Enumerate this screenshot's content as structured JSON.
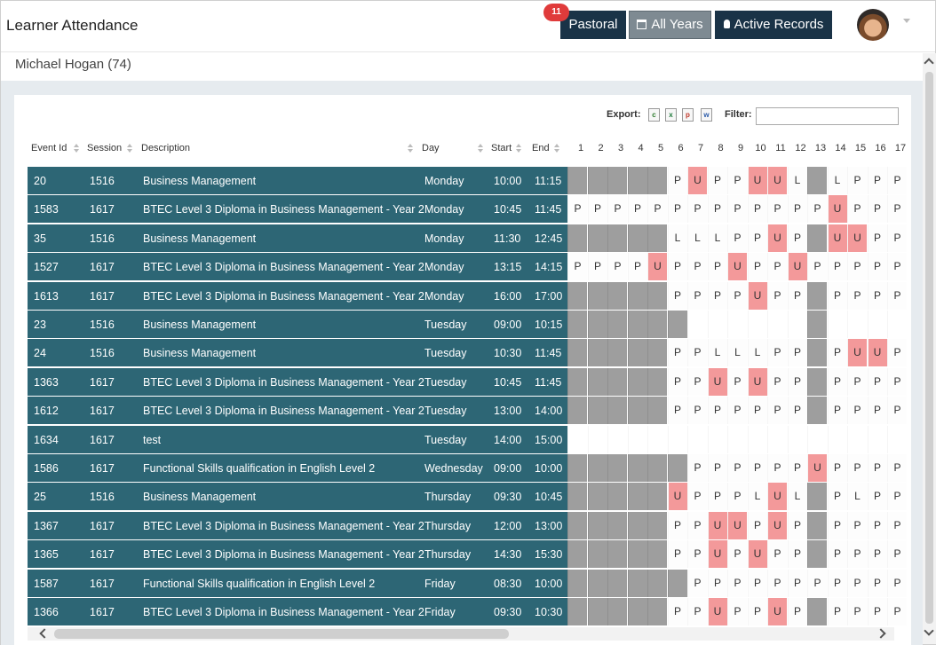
{
  "header": {
    "title": "Learner Attendance",
    "badge_count": "11",
    "pastoral_label": "Pastoral",
    "all_years_label": "All Years",
    "active_records_label": "Active Records"
  },
  "learner": {
    "name": "Michael Hogan (74)"
  },
  "toolbar": {
    "export_label": "Export:",
    "filter_label": "Filter:",
    "filter_value": ""
  },
  "export_icons": [
    "csv-icon",
    "excel-icon",
    "pdf-icon",
    "word-icon"
  ],
  "columns": {
    "event_id": "Event Id",
    "session": "Session",
    "description": "Description",
    "day": "Day",
    "start": "Start",
    "end": "End"
  },
  "day_numbers": [
    "1",
    "2",
    "3",
    "4",
    "5",
    "6",
    "7",
    "8",
    "9",
    "10",
    "11",
    "12",
    "13",
    "14",
    "15",
    "16",
    "17"
  ],
  "colors": {
    "row_bg": "#2d6675",
    "unauthorised": "#f3999a",
    "inactive": "#9e9e9e",
    "nav_button": "#1a3347"
  },
  "rows": [
    {
      "id": "20",
      "session": "1516",
      "desc": "Business Management",
      "day": "Monday",
      "start": "10:00",
      "end": "11:15",
      "marks": [
        "#",
        "#",
        "#",
        "#",
        "#",
        "P",
        "U",
        "P",
        "P",
        "U",
        "U",
        "L",
        "#",
        "L",
        "P",
        "P",
        "P"
      ]
    },
    {
      "id": "1583",
      "session": "1617",
      "desc": "BTEC Level 3 Diploma in Business Management - Year 2",
      "day": "Monday",
      "start": "10:45",
      "end": "11:45",
      "marks": [
        "P",
        "P",
        "P",
        "P",
        "P",
        "P",
        "P",
        "P",
        "P",
        "P",
        "P",
        "P",
        "P",
        "U",
        "P",
        "P",
        "P"
      ]
    },
    {
      "id": "35",
      "session": "1516",
      "desc": "Business Management",
      "day": "Monday",
      "start": "11:30",
      "end": "12:45",
      "marks": [
        "#",
        "#",
        "#",
        "#",
        "#",
        "L",
        "L",
        "L",
        "P",
        "P",
        "U",
        "P",
        "#",
        "U",
        "U",
        "P",
        "P"
      ]
    },
    {
      "id": "1527",
      "session": "1617",
      "desc": "BTEC Level 3 Diploma in Business Management - Year 2",
      "day": "Monday",
      "start": "13:15",
      "end": "14:15",
      "marks": [
        "P",
        "P",
        "P",
        "P",
        "U",
        "P",
        "P",
        "P",
        "U",
        "P",
        "P",
        "U",
        "P",
        "P",
        "P",
        "P",
        "P"
      ]
    },
    {
      "id": "1613",
      "session": "1617",
      "desc": "BTEC Level 3 Diploma in Business Management - Year 2",
      "day": "Monday",
      "start": "16:00",
      "end": "17:00",
      "marks": [
        "#",
        "#",
        "#",
        "#",
        "#",
        "P",
        "P",
        "P",
        "P",
        "U",
        "P",
        "P",
        "#",
        "P",
        "P",
        "P",
        "P"
      ]
    },
    {
      "id": "23",
      "session": "1516",
      "desc": "Business Management",
      "day": "Tuesday",
      "start": "09:00",
      "end": "10:15",
      "marks": [
        "#",
        "#",
        "#",
        "#",
        "#",
        "#",
        "",
        "",
        "",
        "",
        "",
        "",
        "#",
        "",
        "",
        "",
        ""
      ]
    },
    {
      "id": "24",
      "session": "1516",
      "desc": "Business Management",
      "day": "Tuesday",
      "start": "10:30",
      "end": "11:45",
      "marks": [
        "#",
        "#",
        "#",
        "#",
        "#",
        "P",
        "P",
        "L",
        "L",
        "L",
        "P",
        "P",
        "#",
        "P",
        "U",
        "U",
        "P"
      ]
    },
    {
      "id": "1363",
      "session": "1617",
      "desc": "BTEC Level 3 Diploma in Business Management - Year 2",
      "day": "Tuesday",
      "start": "10:45",
      "end": "11:45",
      "marks": [
        "#",
        "#",
        "#",
        "#",
        "#",
        "P",
        "P",
        "U",
        "P",
        "U",
        "P",
        "P",
        "#",
        "P",
        "P",
        "P",
        "P"
      ]
    },
    {
      "id": "1612",
      "session": "1617",
      "desc": "BTEC Level 3 Diploma in Business Management - Year 2",
      "day": "Tuesday",
      "start": "13:00",
      "end": "14:00",
      "marks": [
        "#",
        "#",
        "#",
        "#",
        "#",
        "P",
        "P",
        "P",
        "P",
        "P",
        "P",
        "P",
        "#",
        "P",
        "P",
        "P",
        "P"
      ]
    },
    {
      "id": "1634",
      "session": "1617",
      "desc": "test",
      "day": "Tuesday",
      "start": "14:00",
      "end": "15:00",
      "marks": [
        "",
        "",
        "",
        "",
        "",
        "",
        "",
        "",
        "",
        "",
        "",
        "",
        "",
        "",
        "",
        "",
        ""
      ]
    },
    {
      "id": "1586",
      "session": "1617",
      "desc": "Functional Skills qualification in English Level 2",
      "day": "Wednesday",
      "start": "09:00",
      "end": "10:00",
      "marks": [
        "#",
        "#",
        "#",
        "#",
        "#",
        "#",
        "P",
        "P",
        "P",
        "P",
        "P",
        "P",
        "U",
        "P",
        "P",
        "P",
        "P"
      ]
    },
    {
      "id": "25",
      "session": "1516",
      "desc": "Business Management",
      "day": "Thursday",
      "start": "09:30",
      "end": "10:45",
      "marks": [
        "#",
        "#",
        "#",
        "#",
        "#",
        "U",
        "P",
        "P",
        "P",
        "L",
        "U",
        "L",
        "#",
        "P",
        "L",
        "P",
        "P"
      ]
    },
    {
      "id": "1367",
      "session": "1617",
      "desc": "BTEC Level 3 Diploma in Business Management - Year 2",
      "day": "Thursday",
      "start": "12:00",
      "end": "13:00",
      "marks": [
        "#",
        "#",
        "#",
        "#",
        "#",
        "P",
        "P",
        "U",
        "U",
        "P",
        "U",
        "P",
        "#",
        "P",
        "P",
        "P",
        "P"
      ]
    },
    {
      "id": "1365",
      "session": "1617",
      "desc": "BTEC Level 3 Diploma in Business Management - Year 2",
      "day": "Thursday",
      "start": "14:30",
      "end": "15:30",
      "marks": [
        "#",
        "#",
        "#",
        "#",
        "#",
        "P",
        "P",
        "U",
        "P",
        "U",
        "P",
        "P",
        "#",
        "P",
        "P",
        "P",
        "P"
      ]
    },
    {
      "id": "1587",
      "session": "1617",
      "desc": "Functional Skills qualification in English Level 2",
      "day": "Friday",
      "start": "08:30",
      "end": "10:00",
      "marks": [
        "#",
        "#",
        "#",
        "#",
        "#",
        "#",
        "P",
        "P",
        "P",
        "P",
        "P",
        "P",
        "P",
        "P",
        "P",
        "P",
        "P"
      ]
    },
    {
      "id": "1366",
      "session": "1617",
      "desc": "BTEC Level 3 Diploma in Business Management - Year 2",
      "day": "Friday",
      "start": "09:30",
      "end": "10:30",
      "marks": [
        "#",
        "#",
        "#",
        "#",
        "#",
        "P",
        "P",
        "U",
        "P",
        "P",
        "U",
        "P",
        "#",
        "P",
        "P",
        "P",
        "P"
      ]
    }
  ]
}
